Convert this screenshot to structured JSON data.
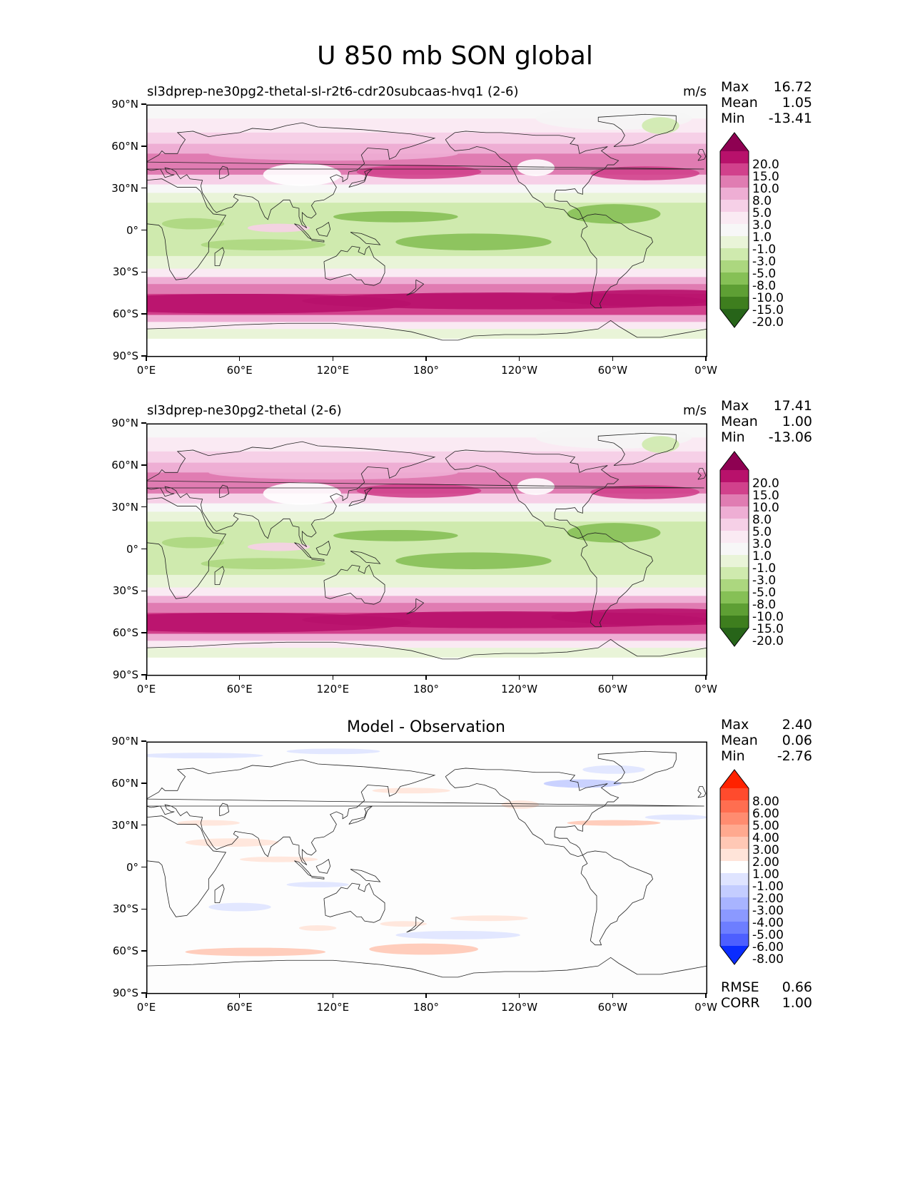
{
  "title": "U 850 mb SON global",
  "panels": [
    {
      "name_left": "sl3dprep-ne30pg2-thetal-sl-r2t6-cdr20subcaas-hvq1 (2-6)",
      "units": "m/s",
      "stats": {
        "max_label": "Max",
        "max": "16.72",
        "mean_label": "Mean",
        "mean": "1.05",
        "min_label": "Min",
        "min": "-13.41"
      }
    },
    {
      "name_left": "sl3dprep-ne30pg2-thetal (2-6)",
      "units": "m/s",
      "stats": {
        "max_label": "Max",
        "max": "17.41",
        "mean_label": "Mean",
        "mean": "1.00",
        "min_label": "Min",
        "min": "-13.06"
      }
    },
    {
      "name_center": "Model - Observation",
      "stats": {
        "max_label": "Max",
        "max": "2.40",
        "mean_label": "Mean",
        "mean": "0.06",
        "min_label": "Min",
        "min": "-2.76"
      },
      "rmse_label": "RMSE",
      "rmse": "0.66",
      "corr_label": "CORR",
      "corr": "1.00"
    }
  ],
  "axes": {
    "y_ticks": [
      "90°N",
      "60°N",
      "30°N",
      "0°",
      "30°S",
      "60°S",
      "90°S"
    ],
    "x_ticks": [
      "0°E",
      "60°E",
      "120°E",
      "180°",
      "120°W",
      "60°W",
      "0°W"
    ]
  },
  "colorbars": {
    "field": {
      "levels": [
        "20.0",
        "15.0",
        "10.0",
        "8.0",
        "5.0",
        "3.0",
        "1.0",
        "-1.0",
        "-3.0",
        "-5.0",
        "-8.0",
        "-10.0",
        "-15.0",
        "-20.0"
      ],
      "colors": [
        "#8e0152",
        "#b8116b",
        "#d1418c",
        "#e07cb2",
        "#eeaed4",
        "#f6d0e7",
        "#faeaf3",
        "#f7f7f7",
        "#e9f4d8",
        "#cfeaae",
        "#acd77f",
        "#86c056",
        "#5e9f34",
        "#3e7e1e",
        "#276419"
      ]
    },
    "diff": {
      "levels": [
        "8.00",
        "6.00",
        "5.00",
        "4.00",
        "3.00",
        "2.00",
        "1.00",
        "-1.00",
        "-2.00",
        "-3.00",
        "-4.00",
        "-5.00",
        "-6.00",
        "-8.00"
      ],
      "colors": [
        "#ff2200",
        "#ff4b2d",
        "#ff6e50",
        "#ff8c70",
        "#ffa98f",
        "#ffc8b5",
        "#ffe4d9",
        "#ffffff",
        "#dfe4ff",
        "#c4cdff",
        "#a8b4ff",
        "#8b99ff",
        "#6d7eff",
        "#4d5fff",
        "#0a2cff"
      ]
    }
  },
  "chart_data": {
    "type": "heatmap",
    "title": "U 850 mb SON global",
    "variable": "U 850 mb",
    "units": "m/s",
    "xlim": [
      0,
      360
    ],
    "ylim": [
      -90,
      90
    ],
    "fields": [
      {
        "name": "sl3dprep-ne30pg2-thetal-sl-r2t6-cdr20subcaas-hvq1 (2-6)",
        "max": 16.72,
        "mean": 1.05,
        "min": -13.41
      },
      {
        "name": "sl3dprep-ne30pg2-thetal (2-6)",
        "max": 17.41,
        "mean": 1.0,
        "min": -13.06
      },
      {
        "name": "Model - Observation",
        "max": 2.4,
        "mean": 0.06,
        "min": -2.76,
        "rmse": 0.66,
        "corr": 1.0
      }
    ]
  }
}
